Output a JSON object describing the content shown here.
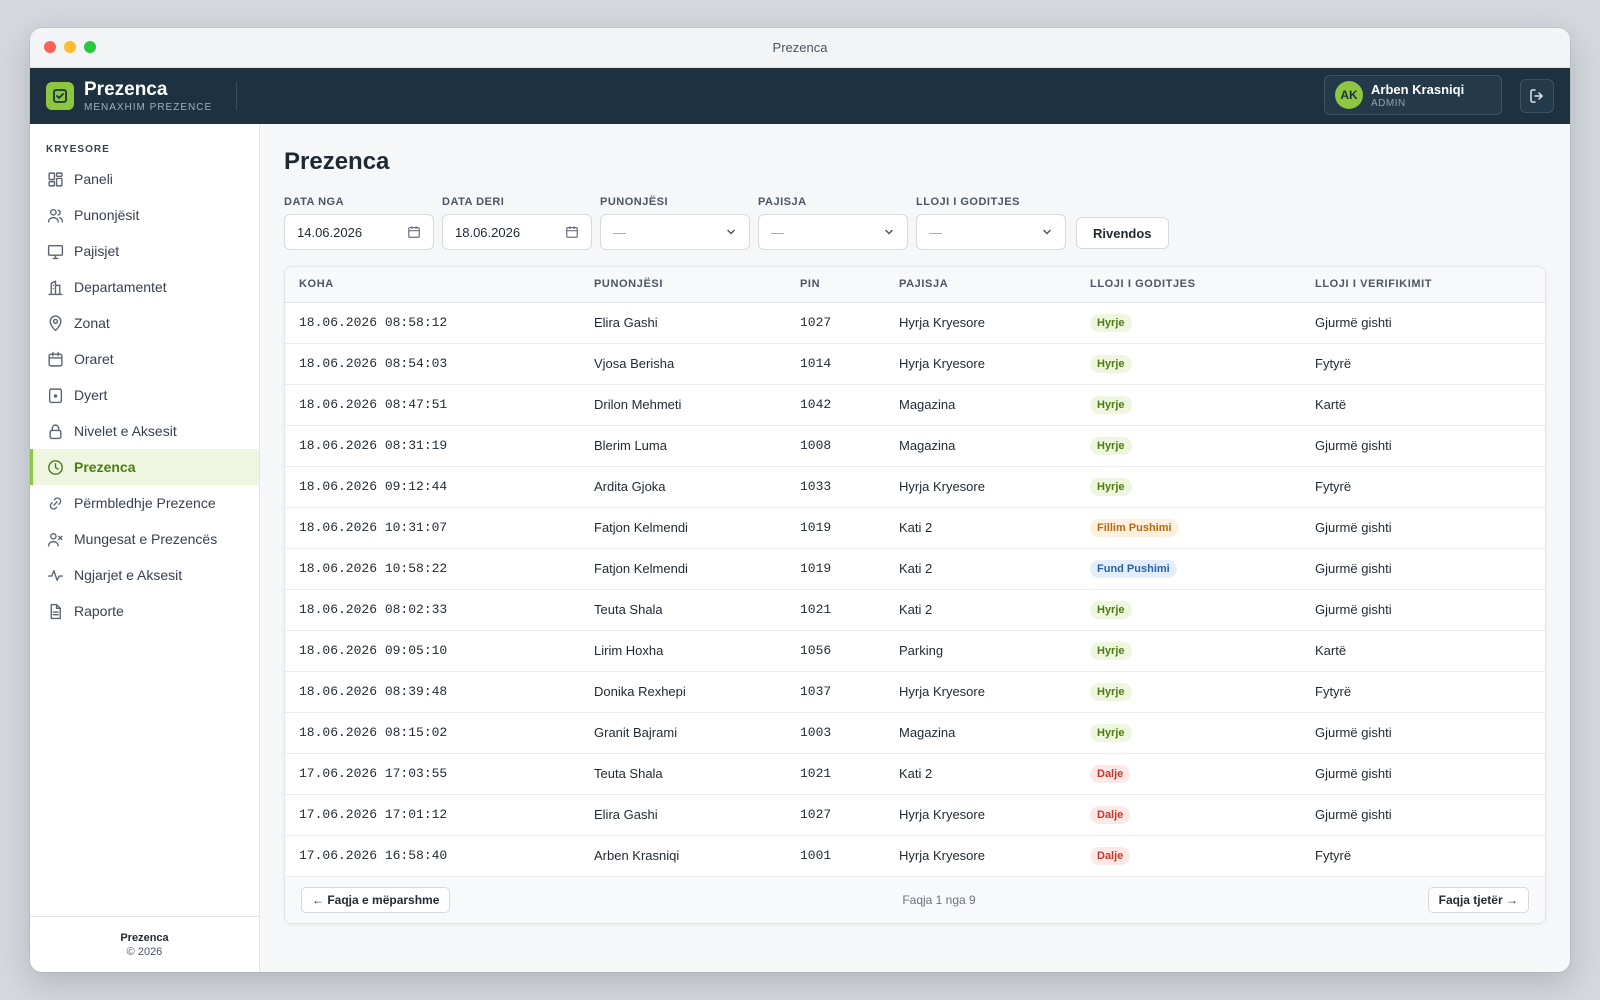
{
  "window": {
    "title": "Prezenca"
  },
  "header": {
    "brand_title": "Prezenca",
    "brand_subtitle": "MENAXHIM PREZENCE",
    "user": {
      "initials": "AK",
      "name": "Arben Krasniqi",
      "role": "ADMIN"
    }
  },
  "sidebar": {
    "section_label": "KRYESORE",
    "items": [
      {
        "label": "Paneli",
        "icon": "dashboard-icon"
      },
      {
        "label": "Punonjësit",
        "icon": "users-icon"
      },
      {
        "label": "Pajisjet",
        "icon": "monitor-icon"
      },
      {
        "label": "Departamentet",
        "icon": "building-icon"
      },
      {
        "label": "Zonat",
        "icon": "map-pin-icon"
      },
      {
        "label": "Oraret",
        "icon": "calendar-icon"
      },
      {
        "label": "Dyert",
        "icon": "door-icon"
      },
      {
        "label": "Nivelet e Aksesit",
        "icon": "lock-icon"
      },
      {
        "label": "Prezenca",
        "icon": "clock-icon",
        "active": true
      },
      {
        "label": "Përmbledhje Prezence",
        "icon": "link-icon"
      },
      {
        "label": "Mungesat e Prezencës",
        "icon": "user-x-icon"
      },
      {
        "label": "Ngjarjet e Aksesit",
        "icon": "activity-icon"
      },
      {
        "label": "Raporte",
        "icon": "file-icon"
      }
    ],
    "footer_title": "Prezenca",
    "footer_copy": "© 2026"
  },
  "main": {
    "title": "Prezenca",
    "filters": {
      "date_from_label": "DATA NGA",
      "date_from_value": "14.06.2026",
      "date_to_label": "DATA DERI",
      "date_to_value": "18.06.2026",
      "employee_label": "PUNONJËSI",
      "employee_value": "—",
      "device_label": "PAJISJA",
      "device_value": "—",
      "punch_type_label": "LLOJI I GODITJES",
      "punch_type_value": "—",
      "reset_label": "Rivendos"
    },
    "table": {
      "columns": [
        "KOHA",
        "PUNONJËSI",
        "PIN",
        "PAJISJA",
        "LLOJI I GODITJES",
        "LLOJI I VERIFIKIMIT"
      ],
      "rows": [
        {
          "time": "18.06.2026 08:58:12",
          "employee": "Elira Gashi",
          "pin": "1027",
          "device": "Hyrja Kryesore",
          "punch": "Hyrje",
          "verify": "Gjurmë gishti"
        },
        {
          "time": "18.06.2026 08:54:03",
          "employee": "Vjosa Berisha",
          "pin": "1014",
          "device": "Hyrja Kryesore",
          "punch": "Hyrje",
          "verify": "Fytyrë"
        },
        {
          "time": "18.06.2026 08:47:51",
          "employee": "Drilon Mehmeti",
          "pin": "1042",
          "device": "Magazina",
          "punch": "Hyrje",
          "verify": "Kartë"
        },
        {
          "time": "18.06.2026 08:31:19",
          "employee": "Blerim Luma",
          "pin": "1008",
          "device": "Magazina",
          "punch": "Hyrje",
          "verify": "Gjurmë gishti"
        },
        {
          "time": "18.06.2026 09:12:44",
          "employee": "Ardita Gjoka",
          "pin": "1033",
          "device": "Hyrja Kryesore",
          "punch": "Hyrje",
          "verify": "Fytyrë"
        },
        {
          "time": "18.06.2026 10:31:07",
          "employee": "Fatjon Kelmendi",
          "pin": "1019",
          "device": "Kati 2",
          "punch": "Fillim Pushimi",
          "verify": "Gjurmë gishti"
        },
        {
          "time": "18.06.2026 10:58:22",
          "employee": "Fatjon Kelmendi",
          "pin": "1019",
          "device": "Kati 2",
          "punch": "Fund Pushimi",
          "verify": "Gjurmë gishti"
        },
        {
          "time": "18.06.2026 08:02:33",
          "employee": "Teuta Shala",
          "pin": "1021",
          "device": "Kati 2",
          "punch": "Hyrje",
          "verify": "Gjurmë gishti"
        },
        {
          "time": "18.06.2026 09:05:10",
          "employee": "Lirim Hoxha",
          "pin": "1056",
          "device": "Parking",
          "punch": "Hyrje",
          "verify": "Kartë"
        },
        {
          "time": "18.06.2026 08:39:48",
          "employee": "Donika Rexhepi",
          "pin": "1037",
          "device": "Hyrja Kryesore",
          "punch": "Hyrje",
          "verify": "Fytyrë"
        },
        {
          "time": "18.06.2026 08:15:02",
          "employee": "Granit Bajrami",
          "pin": "1003",
          "device": "Magazina",
          "punch": "Hyrje",
          "verify": "Gjurmë gishti"
        },
        {
          "time": "17.06.2026 17:03:55",
          "employee": "Teuta Shala",
          "pin": "1021",
          "device": "Kati 2",
          "punch": "Dalje",
          "verify": "Gjurmë gishti"
        },
        {
          "time": "17.06.2026 17:01:12",
          "employee": "Elira Gashi",
          "pin": "1027",
          "device": "Hyrja Kryesore",
          "punch": "Dalje",
          "verify": "Gjurmë gishti"
        },
        {
          "time": "17.06.2026 16:58:40",
          "employee": "Arben Krasniqi",
          "pin": "1001",
          "device": "Hyrja Kryesore",
          "punch": "Dalje",
          "verify": "Fytyrë"
        }
      ]
    },
    "pagination": {
      "prev_label": "← Faqja e mëparshme",
      "info": "Faqja 1 nga 9",
      "next_label": "Faqja tjetër →"
    }
  },
  "colors": {
    "accent": "#8dc63f",
    "header_bg": "#1d3140",
    "badge_in": "#4d7c0f",
    "badge_out": "#c0392b",
    "badge_break_start": "#b86a0c",
    "badge_break_end": "#2563a8"
  }
}
